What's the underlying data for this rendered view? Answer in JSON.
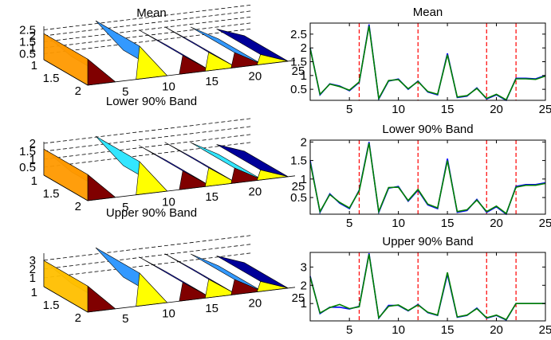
{
  "figure": {
    "colors": {
      "line_blue": "#0000ff",
      "line_green": "#008000",
      "vline_red": "#ff0000",
      "surf_orange": "#ff9900",
      "surf_gold": "#ffbf00",
      "surf_lightblue": "#3399ff",
      "surf_cyan": "#33e6ff",
      "surf_blue": "#1a1aff",
      "surf_navy": "#000099",
      "surf_darkred": "#800000",
      "surf_yellow": "#ffff00"
    }
  },
  "chart_data": [
    {
      "type": "surface",
      "title": "Mean",
      "x_ticks": [
        "1",
        "1.5",
        "2"
      ],
      "y_ticks": [
        "5",
        "10",
        "15",
        "20",
        "25"
      ],
      "z_ticks": [
        "0.5",
        "1",
        "1.5",
        "2",
        "2.5"
      ],
      "xlim": [
        1,
        2
      ],
      "ylim": [
        1,
        25
      ],
      "zlim": [
        0,
        2.8
      ],
      "grid": true
    },
    {
      "type": "line",
      "title": "Mean",
      "x_ticks": [
        "5",
        "10",
        "15",
        "20",
        "25"
      ],
      "y_ticks": [
        "0.5",
        "1",
        "1.5",
        "2",
        "2.5"
      ],
      "xlim": [
        1,
        25
      ],
      "ylim": [
        0.1,
        2.9
      ],
      "vlines": [
        6,
        12,
        19,
        22
      ],
      "grid": false,
      "x": [
        1,
        2,
        3,
        4,
        5,
        6,
        7,
        8,
        9,
        10,
        11,
        12,
        13,
        14,
        15,
        16,
        17,
        18,
        19,
        20,
        21,
        22,
        23,
        24,
        25
      ],
      "series": [
        {
          "values": [
            2.0,
            0.3,
            0.7,
            0.62,
            0.45,
            0.75,
            2.85,
            0.15,
            0.8,
            0.87,
            0.5,
            0.8,
            0.4,
            0.3,
            1.8,
            0.2,
            0.25,
            0.55,
            0.15,
            0.3,
            0.1,
            0.9,
            0.9,
            0.88,
            1.0
          ]
        },
        {
          "values": [
            1.98,
            0.32,
            0.69,
            0.6,
            0.47,
            0.77,
            2.8,
            0.17,
            0.82,
            0.85,
            0.52,
            0.78,
            0.42,
            0.32,
            1.75,
            0.22,
            0.27,
            0.53,
            0.17,
            0.32,
            0.12,
            0.88,
            0.88,
            0.86,
            0.98
          ]
        }
      ]
    },
    {
      "type": "surface",
      "title": "Lower 90% Band",
      "x_ticks": [
        "1",
        "1.5",
        "2"
      ],
      "y_ticks": [
        "5",
        "10",
        "15",
        "20",
        "25"
      ],
      "z_ticks": [
        "0.5",
        "1",
        "1.5",
        "2"
      ],
      "xlim": [
        1,
        2
      ],
      "ylim": [
        1,
        25
      ],
      "zlim": [
        0,
        2.1
      ],
      "grid": true
    },
    {
      "type": "line",
      "title": "Lower 90% Band",
      "x_ticks": [
        "5",
        "10",
        "15",
        "20",
        "25"
      ],
      "y_ticks": [
        "0.5",
        "1",
        "1.5",
        "2"
      ],
      "xlim": [
        1,
        25
      ],
      "ylim": [
        0.05,
        2.05
      ],
      "vlines": [
        6,
        12,
        19,
        22
      ],
      "grid": false,
      "x": [
        1,
        2,
        3,
        4,
        5,
        6,
        7,
        8,
        9,
        10,
        11,
        12,
        13,
        14,
        15,
        16,
        17,
        18,
        19,
        20,
        21,
        22,
        23,
        24,
        25
      ],
      "series": [
        {
          "values": [
            1.5,
            0.1,
            0.6,
            0.35,
            0.2,
            0.7,
            2.0,
            0.1,
            0.75,
            0.8,
            0.4,
            0.7,
            0.3,
            0.2,
            1.55,
            0.1,
            0.15,
            0.45,
            0.1,
            0.25,
            0.05,
            0.8,
            0.85,
            0.85,
            0.9
          ]
        },
        {
          "values": [
            1.45,
            0.12,
            0.58,
            0.37,
            0.22,
            0.68,
            1.97,
            0.12,
            0.77,
            0.78,
            0.42,
            0.72,
            0.32,
            0.22,
            1.5,
            0.12,
            0.17,
            0.43,
            0.12,
            0.27,
            0.07,
            0.78,
            0.83,
            0.83,
            0.88
          ]
        }
      ]
    },
    {
      "type": "surface",
      "title": "Upper 90% Band",
      "x_ticks": [
        "1",
        "1.5",
        "2"
      ],
      "y_ticks": [
        "5",
        "10",
        "15",
        "20",
        "25"
      ],
      "z_ticks": [
        "1",
        "2",
        "3"
      ],
      "xlim": [
        1,
        2
      ],
      "ylim": [
        1,
        25
      ],
      "zlim": [
        0,
        3.8
      ],
      "grid": true
    },
    {
      "type": "line",
      "title": "Upper 90% Band",
      "x_ticks": [
        "5",
        "10",
        "15",
        "20",
        "25"
      ],
      "y_ticks": [
        "1",
        "2",
        "3"
      ],
      "xlim": [
        1,
        25
      ],
      "ylim": [
        0.05,
        3.8
      ],
      "vlines": [
        6,
        12,
        19,
        22
      ],
      "grid": false,
      "x": [
        1,
        2,
        3,
        4,
        5,
        6,
        7,
        8,
        9,
        10,
        11,
        12,
        13,
        14,
        15,
        16,
        17,
        18,
        19,
        20,
        21,
        22,
        23,
        24,
        25
      ],
      "series": [
        {
          "values": [
            2.5,
            0.45,
            0.8,
            0.8,
            0.7,
            0.85,
            3.75,
            0.2,
            0.9,
            0.9,
            0.6,
            0.95,
            0.5,
            0.35,
            2.6,
            0.25,
            0.35,
            0.75,
            0.2,
            0.35,
            0.1,
            1.0,
            1.0,
            1.0,
            1.0
          ]
        },
        {
          "values": [
            2.45,
            0.48,
            0.78,
            0.95,
            0.72,
            0.82,
            3.7,
            0.22,
            0.85,
            0.92,
            0.62,
            0.92,
            0.52,
            0.37,
            2.7,
            0.27,
            0.37,
            0.72,
            0.22,
            0.37,
            0.12,
            1.0,
            1.0,
            1.0,
            1.0
          ]
        }
      ]
    }
  ]
}
